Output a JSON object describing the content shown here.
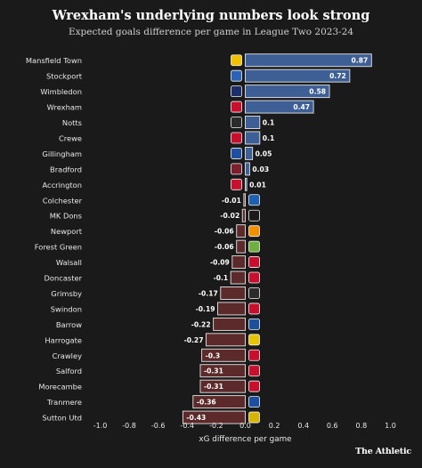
{
  "title": "Wrexham's underlying numbers look strong",
  "subtitle": "Expected goals difference per game in League Two 2023-24",
  "footer": {
    "logo_text": "The Athletic"
  },
  "colors": {
    "background": "#1a1a1a",
    "positive": "#3d5f95",
    "negative": "#5c2a2a",
    "bar_outline": "#e6e6e6",
    "text": "#e8e8e8"
  },
  "chart_data": {
    "type": "bar",
    "orientation": "horizontal",
    "categories": [
      "Mansfield Town",
      "Stockport",
      "Wimbledon",
      "Wrexham",
      "Notts",
      "Crewe",
      "Gillingham",
      "Bradford",
      "Accrington",
      "Colchester",
      "MK Dons",
      "Newport",
      "Forest Green",
      "Walsall",
      "Doncaster",
      "Grimsby",
      "Swindon",
      "Barrow",
      "Harrogate",
      "Crawley",
      "Salford",
      "Morecambe",
      "Tranmere",
      "Sutton Utd"
    ],
    "value_labels": [
      "0.87",
      "0.72",
      "0.58",
      "0.47",
      "0.1",
      "0.1",
      "0.05",
      "0.03",
      "0.01",
      "-0.01",
      "-0.02",
      "-0.06",
      "-0.06",
      "-0.09",
      "-0.1",
      "-0.17",
      "-0.19",
      "-0.22",
      "-0.27",
      "-0.3",
      "-0.31",
      "-0.31",
      "-0.36",
      "-0.43"
    ],
    "values": [
      0.87,
      0.72,
      0.58,
      0.47,
      0.1,
      0.1,
      0.05,
      0.03,
      0.01,
      -0.01,
      -0.02,
      -0.06,
      -0.06,
      -0.09,
      -0.1,
      -0.17,
      -0.19,
      -0.22,
      -0.27,
      -0.3,
      -0.31,
      -0.31,
      -0.36,
      -0.43
    ],
    "badge_colors": [
      "#f2c100",
      "#2a63b8",
      "#1d2f6b",
      "#c8102e",
      "#2b2b2b",
      "#c8102e",
      "#1f4fa0",
      "#7a1f2b",
      "#c8102e",
      "#1e5fb0",
      "#1a1a1a",
      "#f29100",
      "#6fb03f",
      "#c8102e",
      "#c8102e",
      "#2b2b2b",
      "#c8102e",
      "#1d4f9f",
      "#e8c400",
      "#c8102e",
      "#c8102e",
      "#c8102e",
      "#1d4fa0",
      "#d9b400"
    ],
    "x_ticks": [
      "-1.0",
      "-0.8",
      "-0.6",
      "-0.4",
      "-0.2",
      "0.0",
      "0.2",
      "0.4",
      "0.6",
      "0.8",
      "1.0"
    ],
    "xlim": [
      -1.0,
      1.0
    ],
    "xlabel": "xG difference per game",
    "ylabel": "",
    "grid": false
  }
}
